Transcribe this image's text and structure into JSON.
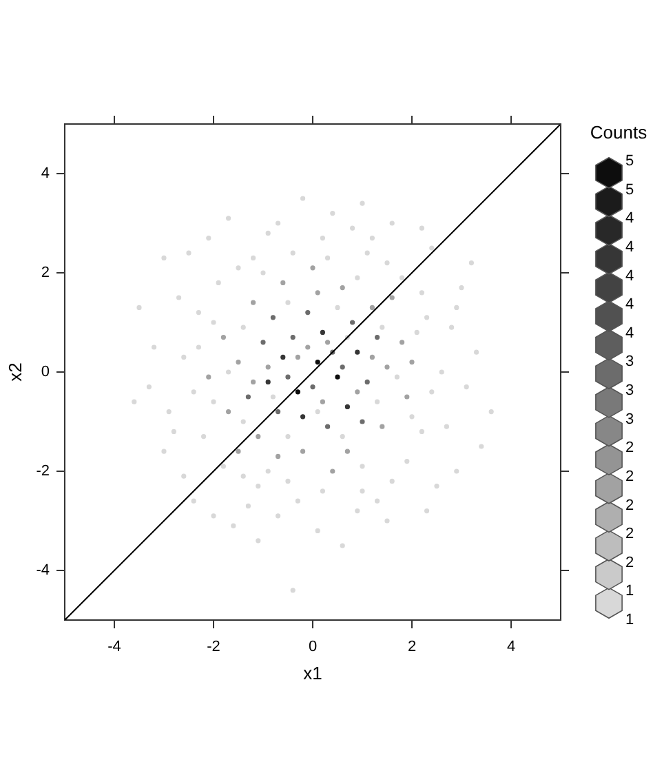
{
  "chart_data": {
    "type": "scatter",
    "xlabel": "x1",
    "ylabel": "x2",
    "clabel": "Counts",
    "xlim": [
      -5,
      5
    ],
    "ylim": [
      -5,
      5
    ],
    "xticks": [
      -4,
      -2,
      0,
      2,
      4
    ],
    "yticks": [
      -4,
      -2,
      0,
      2,
      4
    ],
    "grid": false,
    "clim": [
      1,
      5
    ],
    "cticks": [
      1,
      {
        "value": 1.25,
        "label": "1"
      },
      {
        "value": 1.5,
        "label": "2"
      },
      {
        "value": 1.75,
        "label": "2"
      },
      2,
      {
        "value": 2.25,
        "label": "2"
      },
      {
        "value": 2.5,
        "label": "2"
      },
      {
        "value": 2.75,
        "label": "3"
      },
      3,
      {
        "value": 3.25,
        "label": "3"
      },
      {
        "value": 3.5,
        "label": "4"
      },
      {
        "value": 3.75,
        "label": "4"
      },
      4,
      {
        "value": 4.25,
        "label": "4"
      },
      {
        "value": 4.5,
        "label": "4"
      },
      {
        "value": 4.75,
        "label": "5"
      },
      5
    ],
    "series": [
      {
        "type": "scatter",
        "x": [
          0.1,
          -0.3,
          0.5,
          -0.6,
          0.2,
          0.9,
          -0.2,
          0.7,
          -0.9,
          0.0,
          -0.4,
          0.4,
          1.1,
          -1.0,
          0.3,
          -0.7,
          0.8,
          -0.1,
          1.3,
          -1.3,
          0.6,
          -0.5,
          1.0,
          -0.8,
          1.5,
          -1.5,
          0.1,
          -0.2,
          1.2,
          -1.2,
          1.4,
          -1.1,
          0.6,
          -0.6,
          0.7,
          -0.7,
          1.8,
          -1.8,
          1.9,
          -1.7,
          0.3,
          -0.3,
          0.9,
          -0.9,
          0.2,
          1.6,
          -1.5,
          2.0,
          -2.1,
          0.0,
          0.4,
          -0.1,
          1.2,
          -1.2,
          2.3,
          -2.3,
          2.2,
          -2.2,
          1.1,
          -1.2,
          1.0,
          -1.1,
          2.6,
          -2.6,
          0.2,
          -0.3,
          1.8,
          -1.9,
          1.9,
          -1.8,
          2.8,
          -2.9,
          0.8,
          -0.9,
          0.9,
          -0.7,
          3.1,
          -3.2,
          0.4,
          -0.2,
          0.1,
          -0.4,
          3.6,
          -3.5,
          2.4,
          -2.5,
          2.5,
          -2.4,
          3.0,
          -3.0,
          1.6,
          -1.7,
          1.5,
          -1.6,
          1.4,
          -1.4,
          1.3,
          -1.4,
          0.5,
          -0.5,
          0.6,
          -0.5,
          1.7,
          -1.7,
          2.1,
          -2.0,
          2.0,
          -2.0,
          0.9,
          -1.0,
          1.0,
          -0.9,
          2.2,
          -2.3,
          2.4,
          -2.4,
          0.3,
          -0.4,
          0.2,
          -0.5,
          1.5,
          -1.5,
          1.6,
          -1.4,
          2.7,
          -2.7,
          2.9,
          -2.8,
          1.2,
          -0.7,
          1.3,
          -1.3,
          3.3,
          -3.3,
          2.2,
          -2.1,
          2.3,
          -2.0,
          3.4,
          -3.6,
          1.0,
          0.6,
          -1.1,
          3.2,
          -3.0,
          2.9,
          -2.6,
          0.7,
          -0.8,
          0.1
        ],
        "values": [
          0.2,
          -0.4,
          -0.1,
          0.3,
          0.8,
          0.4,
          -0.9,
          -0.7,
          -0.2,
          -0.3,
          0.7,
          0.4,
          -0.2,
          0.6,
          -1.1,
          -0.8,
          1.0,
          1.2,
          0.7,
          -0.5,
          0.1,
          -0.1,
          -1.0,
          1.1,
          0.1,
          0.2,
          1.6,
          -1.6,
          1.3,
          1.4,
          -1.1,
          -1.3,
          1.7,
          1.8,
          -1.6,
          -1.7,
          0.6,
          0.7,
          -0.5,
          -0.8,
          0.6,
          0.3,
          -0.4,
          0.1,
          -0.6,
          1.5,
          -1.6,
          0.2,
          -0.1,
          2.1,
          -2.0,
          0.5,
          0.3,
          -0.2,
          1.1,
          1.2,
          -1.2,
          -1.3,
          2.4,
          2.3,
          -2.4,
          -2.3,
          0.0,
          0.3,
          2.7,
          -2.6,
          1.9,
          1.8,
          -1.8,
          -1.9,
          0.9,
          -0.8,
          2.9,
          2.8,
          -2.8,
          -2.9,
          -0.3,
          0.5,
          3.2,
          3.5,
          -3.2,
          -4.4,
          -0.8,
          1.3,
          2.5,
          2.4,
          -2.3,
          -2.6,
          1.7,
          -1.6,
          3.0,
          3.1,
          -3.0,
          -3.1,
          0.9,
          0.9,
          -0.6,
          -1.0,
          1.3,
          1.4,
          -1.3,
          -1.3,
          -0.1,
          0.0,
          0.8,
          1.0,
          -0.9,
          -0.6,
          1.9,
          2.0,
          -1.9,
          -2.0,
          1.6,
          0.5,
          -0.4,
          -0.4,
          2.3,
          2.4,
          -2.4,
          -2.2,
          2.2,
          2.1,
          -2.2,
          -2.1,
          -1.1,
          1.5,
          1.3,
          -1.2,
          2.7,
          3.0,
          -2.6,
          -2.7,
          0.4,
          -0.3,
          2.9,
          2.7,
          -2.8,
          -2.9,
          -1.5,
          -0.6,
          3.4,
          -3.5,
          -3.4,
          2.2,
          2.3,
          -2.0,
          -2.1,
          0.7,
          -0.5,
          -0.8
        ],
        "cvalues": [
          5,
          5,
          5,
          4,
          4,
          4,
          4,
          4,
          4,
          3,
          3,
          3,
          3,
          3,
          3,
          3,
          3,
          3,
          3,
          3,
          3,
          3,
          3,
          3,
          2,
          2,
          2,
          2,
          2,
          2,
          2,
          2,
          2,
          2,
          2,
          2,
          2,
          2,
          2,
          2,
          2,
          2,
          2,
          2,
          2,
          2,
          2,
          2,
          2,
          2,
          2,
          2,
          2,
          2,
          1,
          1,
          1,
          1,
          1,
          1,
          1,
          1,
          1,
          1,
          1,
          1,
          1,
          1,
          1,
          1,
          1,
          1,
          1,
          1,
          1,
          1,
          1,
          1,
          1,
          1,
          1,
          1,
          1,
          1,
          1,
          1,
          1,
          1,
          1,
          1,
          1,
          1,
          1,
          1,
          1,
          1,
          1,
          1,
          1,
          1,
          1,
          1,
          1,
          1,
          1,
          1,
          1,
          1,
          1,
          1,
          1,
          1,
          1,
          1,
          1,
          1,
          1,
          1,
          1,
          1,
          1,
          1,
          1,
          1,
          1,
          1,
          1,
          1,
          1,
          1,
          1,
          1,
          1,
          1,
          1,
          1,
          1,
          1,
          1,
          1,
          1,
          1,
          1,
          1,
          1,
          1,
          1,
          1,
          1,
          1
        ],
        "colors": [
          "#0d0d0d",
          "#0d0d0d",
          "#0d0d0d",
          "#363636",
          "#363636",
          "#363636",
          "#363636",
          "#363636",
          "#363636",
          "#6c6c6c",
          "#6c6c6c",
          "#6c6c6c",
          "#6c6c6c",
          "#6c6c6c",
          "#6c6c6c",
          "#6c6c6c",
          "#6c6c6c",
          "#6c6c6c",
          "#6c6c6c",
          "#6c6c6c",
          "#6c6c6c",
          "#6c6c6c",
          "#6c6c6c",
          "#6c6c6c",
          "#a2a2a2",
          "#a2a2a2",
          "#a2a2a2",
          "#a2a2a2",
          "#a2a2a2",
          "#a2a2a2",
          "#a2a2a2",
          "#a2a2a2",
          "#a2a2a2",
          "#a2a2a2",
          "#a2a2a2",
          "#a2a2a2",
          "#a2a2a2",
          "#a2a2a2",
          "#a2a2a2",
          "#a2a2a2",
          "#a2a2a2",
          "#a2a2a2",
          "#a2a2a2",
          "#a2a2a2",
          "#a2a2a2",
          "#a2a2a2",
          "#a2a2a2",
          "#a2a2a2",
          "#a2a2a2",
          "#a2a2a2",
          "#a2a2a2",
          "#a2a2a2",
          "#a2a2a2",
          "#a2a2a2",
          "#d8d8d8",
          "#d8d8d8",
          "#d8d8d8",
          "#d8d8d8",
          "#d8d8d8",
          "#d8d8d8",
          "#d8d8d8",
          "#d8d8d8",
          "#d8d8d8",
          "#d8d8d8",
          "#d8d8d8",
          "#d8d8d8",
          "#d8d8d8",
          "#d8d8d8",
          "#d8d8d8",
          "#d8d8d8",
          "#d8d8d8",
          "#d8d8d8",
          "#d8d8d8",
          "#d8d8d8",
          "#d8d8d8",
          "#d8d8d8",
          "#d8d8d8",
          "#d8d8d8",
          "#d8d8d8",
          "#d8d8d8",
          "#d8d8d8",
          "#d8d8d8",
          "#d8d8d8",
          "#d8d8d8",
          "#d8d8d8",
          "#d8d8d8",
          "#d8d8d8",
          "#d8d8d8",
          "#d8d8d8",
          "#d8d8d8",
          "#d8d8d8",
          "#d8d8d8",
          "#d8d8d8",
          "#d8d8d8",
          "#d8d8d8",
          "#d8d8d8",
          "#d8d8d8",
          "#d8d8d8",
          "#d8d8d8",
          "#d8d8d8",
          "#d8d8d8",
          "#d8d8d8",
          "#d8d8d8",
          "#d8d8d8",
          "#d8d8d8",
          "#d8d8d8",
          "#d8d8d8",
          "#d8d8d8",
          "#d8d8d8",
          "#d8d8d8",
          "#d8d8d8",
          "#d8d8d8",
          "#d8d8d8",
          "#d8d8d8",
          "#d8d8d8",
          "#d8d8d8",
          "#d8d8d8",
          "#d8d8d8",
          "#d8d8d8",
          "#d8d8d8",
          "#d8d8d8",
          "#d8d8d8",
          "#d8d8d8",
          "#d8d8d8",
          "#d8d8d8",
          "#d8d8d8",
          "#d8d8d8",
          "#d8d8d8",
          "#d8d8d8",
          "#d8d8d8",
          "#d8d8d8",
          "#d8d8d8",
          "#d8d8d8",
          "#d8d8d8",
          "#d8d8d8",
          "#d8d8d8",
          "#d8d8d8",
          "#d8d8d8",
          "#d8d8d8",
          "#d8d8d8",
          "#d8d8d8",
          "#d8d8d8",
          "#d8d8d8",
          "#d8d8d8",
          "#d8d8d8",
          "#d8d8d8",
          "#d8d8d8",
          "#d8d8d8",
          "#d8d8d8",
          "#d8d8d8"
        ]
      },
      {
        "type": "line",
        "color": "#000000",
        "x": [
          -5,
          5
        ],
        "values": [
          -5,
          5
        ]
      }
    ]
  }
}
